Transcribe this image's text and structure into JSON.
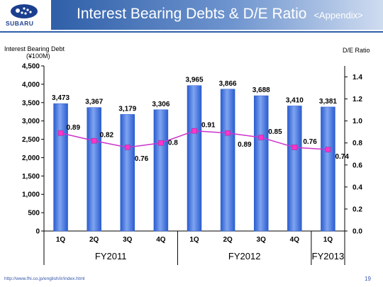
{
  "header": {
    "logo_text": "SUBARU",
    "title": "Interest Bearing Debts & D/E Ratio",
    "subtitle": "<Appendix>"
  },
  "footer": {
    "url": "http://www.fhi.co.jp/english/ir/index.html",
    "page_number": "19"
  },
  "colors": {
    "bar": "#3b6fd8",
    "line": "#cc33cc",
    "marker": "#ff33cc",
    "title_bar": "#2f5fa8"
  },
  "chart_data": {
    "type": "bar",
    "categories": [
      "1Q",
      "2Q",
      "3Q",
      "4Q",
      "1Q",
      "2Q",
      "3Q",
      "4Q",
      "1Q"
    ],
    "groups": [
      {
        "label": "FY2011",
        "start": 0,
        "end": 3
      },
      {
        "label": "FY2012",
        "start": 4,
        "end": 7
      },
      {
        "label": "FY2013",
        "start": 8,
        "end": 8
      }
    ],
    "series": [
      {
        "type": "bar",
        "axis": "left",
        "values": [
          3473,
          3367,
          3179,
          3306,
          3965,
          3866,
          3688,
          3410,
          3381
        ],
        "labels": [
          "3,473",
          "3,367",
          "3,179",
          "3,306",
          "3,965",
          "3,866",
          "3,688",
          "3,410",
          "3,381"
        ]
      },
      {
        "type": "line",
        "axis": "right",
        "values": [
          0.89,
          0.82,
          0.76,
          0.8,
          0.91,
          0.89,
          0.85,
          0.76,
          0.74
        ],
        "labels": [
          "0.89",
          "0.82",
          "0.76",
          "0.8",
          "0.91",
          "0.89",
          "0.85",
          "0.76",
          "0.74"
        ]
      }
    ],
    "ylabel_left": [
      "Interest Bearing Debt",
      "(¥100M)"
    ],
    "ylabel_right": "D/E Ratio",
    "ylim_left": [
      0,
      4500
    ],
    "ylim_right": [
      0,
      1.5
    ],
    "yticks_left": [
      "0",
      "500",
      "1,000",
      "1,500",
      "2,000",
      "2,500",
      "3,000",
      "3,500",
      "4,000",
      "4,500"
    ],
    "yticks_right": [
      "0.0",
      "0.2",
      "0.4",
      "0.6",
      "0.8",
      "1.0",
      "1.2",
      "1.4"
    ],
    "yticks_right_values": [
      0,
      0.2,
      0.4,
      0.6,
      0.8,
      1.0,
      1.2,
      1.4
    ],
    "grid": false,
    "legend": "none"
  }
}
